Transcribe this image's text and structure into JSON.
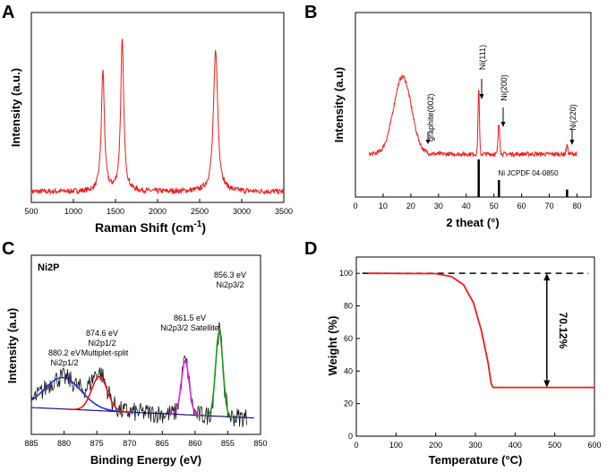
{
  "chart_data": [
    {
      "panel": "A",
      "type": "line",
      "xlabel_main": "Raman Shift",
      "xlabel_unit": "cm",
      "xlabel_sup": "-1",
      "ylabel": "Intensity  (a.u.)",
      "xlim": [
        500,
        3500
      ],
      "xticks": [
        500,
        1000,
        1500,
        2000,
        2500,
        3000,
        3500
      ],
      "series": [
        {
          "name": "Raman spectrum",
          "color": "#ee1c1c",
          "peaks": [
            {
              "x": 1350,
              "height": 0.68
            },
            {
              "x": 1580,
              "height": 0.85
            },
            {
              "x": 2690,
              "height": 0.8
            }
          ]
        }
      ]
    },
    {
      "panel": "B",
      "type": "line",
      "xlabel": "2 theat (°)",
      "ylabel": "Intensity (a.u)",
      "xlim": [
        0,
        85
      ],
      "xticks": [
        0,
        10,
        20,
        30,
        40,
        50,
        60,
        70,
        80
      ],
      "series": [
        {
          "name": "XRD pattern",
          "color": "#ee1c1c",
          "peaks": [
            {
              "x": 17,
              "height": 0.72
            },
            {
              "x": 44.5,
              "height": 0.62
            },
            {
              "x": 51.8,
              "height": 0.28
            },
            {
              "x": 76.4,
              "height": 0.08
            }
          ]
        }
      ],
      "annotations": [
        "graphite(002)",
        "Ni(111)",
        "Ni(200)",
        "Ni(220)"
      ],
      "reference": {
        "label": "Ni JCPDF 04-0850",
        "lines": [
          {
            "x": 44.5,
            "height": 1.0
          },
          {
            "x": 51.8,
            "height": 0.45
          },
          {
            "x": 76.4,
            "height": 0.2
          }
        ]
      }
    },
    {
      "panel": "C",
      "type": "line",
      "title": "Ni2P",
      "xlabel": "Binding Energy (eV)",
      "ylabel": "Intensity (a.u)",
      "xlim": [
        885,
        850
      ],
      "xticks": [
        885,
        880,
        875,
        870,
        865,
        860,
        855,
        850
      ],
      "fits": [
        {
          "center": 880.2,
          "color": "#1f2fd0",
          "label_ev": "880.2 eV",
          "label_name": "Ni2p1/2"
        },
        {
          "center": 874.6,
          "color": "#e01818",
          "label_ev": "874.6 eV",
          "label_name": "Ni2p1/2",
          "label_extra": "Multiplet-split"
        },
        {
          "center": 861.5,
          "color": "#e020e0",
          "label_ev": "861.5 eV",
          "label_name": "Ni2p3/2 Satellite"
        },
        {
          "center": 856.3,
          "color": "#1a9a1a",
          "label_ev": "856.3 eV",
          "label_name": "Ni2p3/2"
        }
      ],
      "background_color": "#14147a"
    },
    {
      "panel": "D",
      "type": "line",
      "xlabel": "Temperature    (°C)",
      "ylabel": "Weight  (%)",
      "xlim": [
        0,
        600
      ],
      "ylim": [
        0,
        110
      ],
      "xticks": [
        0,
        100,
        200,
        300,
        400,
        500,
        600
      ],
      "yticks": [
        0,
        20,
        40,
        60,
        80,
        100
      ],
      "series": [
        {
          "name": "TGA",
          "color": "#ee1c1c",
          "points": [
            [
              30,
              100
            ],
            [
              200,
              99.8
            ],
            [
              240,
              98
            ],
            [
              270,
              93
            ],
            [
              295,
              82
            ],
            [
              315,
              65
            ],
            [
              332,
              45
            ],
            [
              340,
              32
            ],
            [
              345,
              29.9
            ],
            [
              600,
              29.9
            ]
          ]
        }
      ],
      "reference_level": 100,
      "loss_label": "70.12%",
      "arrow_x": 480
    }
  ],
  "panel_letters": [
    "A",
    "B",
    "C",
    "D"
  ]
}
